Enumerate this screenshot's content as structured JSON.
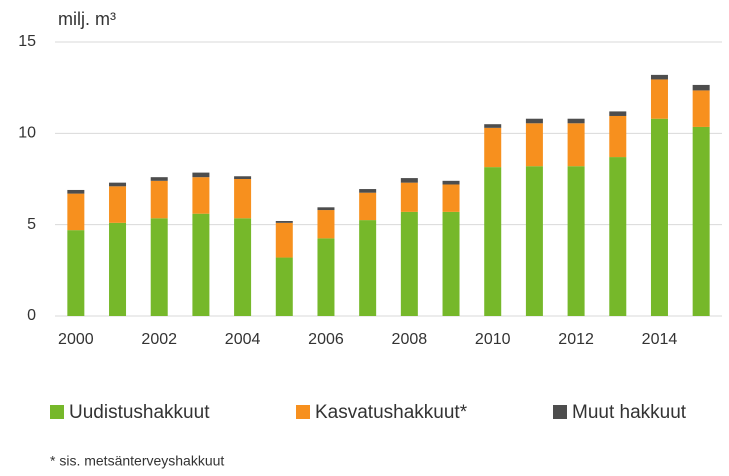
{
  "chart_data": {
    "type": "stacked_bar",
    "y_label": "milj. m³",
    "footnote": "* sis. metsänterveyshakkuut",
    "categories": [
      "2000",
      null,
      "2002",
      null,
      "2004",
      null,
      "2006",
      null,
      "2008",
      null,
      "2010",
      null,
      "2012",
      null,
      "2014",
      null
    ],
    "series": [
      {
        "name": "Uudistushakkuut",
        "color": "#76b82a",
        "values": [
          4.7,
          5.1,
          5.35,
          5.6,
          5.35,
          3.2,
          4.25,
          5.25,
          5.7,
          5.7,
          8.15,
          8.2,
          8.2,
          8.7,
          10.8,
          10.35
        ]
      },
      {
        "name": "Kasvatushakkuut*",
        "color": "#f7901e",
        "values": [
          2.0,
          2.0,
          2.05,
          2.0,
          2.15,
          1.9,
          1.55,
          1.5,
          1.6,
          1.5,
          2.15,
          2.35,
          2.35,
          2.25,
          2.15,
          2.0
        ]
      },
      {
        "name": "Muut hakkuut",
        "color": "#4d4d4d",
        "values": [
          0.2,
          0.2,
          0.2,
          0.25,
          0.15,
          0.1,
          0.15,
          0.2,
          0.25,
          0.2,
          0.2,
          0.25,
          0.25,
          0.25,
          0.25,
          0.3
        ]
      }
    ],
    "ylim": [
      0,
      15
    ],
    "yticks": [
      0,
      5,
      10,
      15
    ],
    "grid": true,
    "legend": "bottom"
  }
}
